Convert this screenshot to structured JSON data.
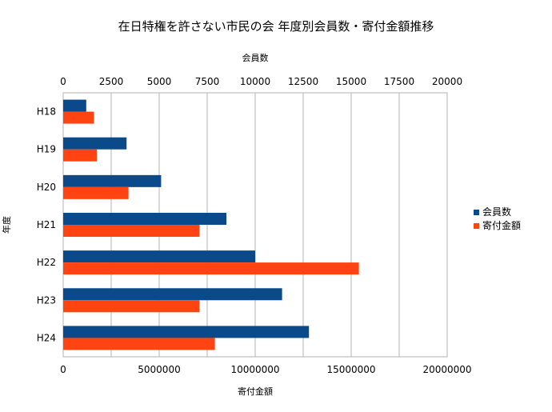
{
  "chart_data": {
    "type": "bar",
    "orientation": "horizontal",
    "title": "在日特権を許さない市民の会 年度別会員数・寄付金額推移",
    "categories": [
      "H18",
      "H19",
      "H20",
      "H21",
      "H22",
      "H23",
      "H24"
    ],
    "ylabel": "年度",
    "top_axis": {
      "label": "会員数",
      "range": [
        0,
        20000
      ],
      "ticks": [
        "0",
        "2500",
        "5000",
        "7500",
        "10000",
        "12500",
        "15000",
        "17500",
        "20000"
      ],
      "tick_values": [
        0,
        2500,
        5000,
        7500,
        10000,
        12500,
        15000,
        17500,
        20000
      ]
    },
    "bottom_axis": {
      "label": "寄付金額",
      "range": [
        0,
        20000000
      ],
      "ticks": [
        "0",
        "5000000",
        "10000000",
        "15000000",
        "20000000"
      ],
      "tick_values": [
        0,
        5000000,
        10000000,
        15000000,
        20000000
      ]
    },
    "grid": true,
    "legend_position": "right",
    "series": [
      {
        "name": "会員数",
        "axis": "top",
        "color": "#0a4a8a",
        "values": [
          1200,
          3300,
          5100,
          8500,
          10000,
          11400,
          12800
        ]
      },
      {
        "name": "寄付金額",
        "axis": "bottom",
        "color": "#ff4411",
        "values": [
          1600000,
          1750000,
          3400000,
          7100000,
          15400000,
          7100000,
          7900000
        ]
      }
    ]
  }
}
